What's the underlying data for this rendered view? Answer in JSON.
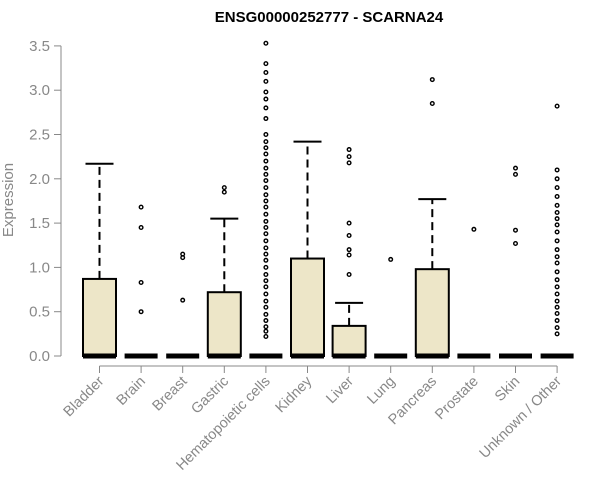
{
  "chart_data": {
    "type": "boxplot",
    "title": "ENSG00000252777 - SCARNA24",
    "xlabel": "",
    "ylabel": "Expression",
    "ylim": [
      0,
      3.5
    ],
    "yticks": [
      "0.0",
      "0.5",
      "1.0",
      "1.5",
      "2.0",
      "2.5",
      "3.0",
      "3.5"
    ],
    "box_color": "#ede6c8",
    "categories": [
      "Bladder",
      "Brain",
      "Breast",
      "Gastric",
      "Hematopoietic cells",
      "Kidney",
      "Liver",
      "Lung",
      "Pancreas",
      "Prostate",
      "Skin",
      "Unknown / Other"
    ],
    "boxes": [
      {
        "q1": 0,
        "median": 0,
        "q3": 0.87,
        "whisker_low": 0,
        "whisker_high": 2.17,
        "outliers": []
      },
      {
        "q1": 0,
        "median": 0,
        "q3": 0,
        "whisker_low": 0,
        "whisker_high": 0,
        "outliers": [
          0.5,
          0.83,
          1.45,
          1.68
        ]
      },
      {
        "q1": 0,
        "median": 0,
        "q3": 0,
        "whisker_low": 0,
        "whisker_high": 0,
        "outliers": [
          0.63,
          1.11,
          1.15
        ]
      },
      {
        "q1": 0,
        "median": 0,
        "q3": 0.72,
        "whisker_low": 0,
        "whisker_high": 1.55,
        "outliers": [
          1.85,
          1.9
        ]
      },
      {
        "q1": 0,
        "median": 0,
        "q3": 0,
        "whisker_low": 0,
        "whisker_high": 0,
        "outliers": [
          0.22,
          0.28,
          0.33,
          0.4,
          0.47,
          0.55,
          0.62,
          0.7,
          0.78,
          0.85,
          0.92,
          1.0,
          1.08,
          1.15,
          1.22,
          1.3,
          1.38,
          1.45,
          1.52,
          1.6,
          1.68,
          1.75,
          1.82,
          1.9,
          1.98,
          2.05,
          2.12,
          2.2,
          2.28,
          2.35,
          2.42,
          2.5,
          2.68,
          2.8,
          2.9,
          2.98,
          3.1,
          3.2,
          3.3,
          3.53
        ]
      },
      {
        "q1": 0,
        "median": 0,
        "q3": 1.1,
        "whisker_low": 0,
        "whisker_high": 2.42,
        "outliers": []
      },
      {
        "q1": 0,
        "median": 0,
        "q3": 0.34,
        "whisker_low": 0,
        "whisker_high": 0.6,
        "outliers": [
          0.92,
          1.14,
          1.2,
          1.36,
          1.5,
          2.18,
          2.25,
          2.33
        ]
      },
      {
        "q1": 0,
        "median": 0,
        "q3": 0,
        "whisker_low": 0,
        "whisker_high": 0,
        "outliers": [
          1.09
        ]
      },
      {
        "q1": 0,
        "median": 0,
        "q3": 0.98,
        "whisker_low": 0,
        "whisker_high": 1.77,
        "outliers": [
          2.85,
          3.12
        ]
      },
      {
        "q1": 0,
        "median": 0,
        "q3": 0,
        "whisker_low": 0,
        "whisker_high": 0,
        "outliers": [
          1.43
        ]
      },
      {
        "q1": 0,
        "median": 0,
        "q3": 0,
        "whisker_low": 0,
        "whisker_high": 0,
        "outliers": [
          1.27,
          1.42,
          2.05,
          2.12
        ]
      },
      {
        "q1": 0,
        "median": 0,
        "q3": 0,
        "whisker_low": 0,
        "whisker_high": 0,
        "outliers": [
          0.25,
          0.32,
          0.4,
          0.48,
          0.55,
          0.62,
          0.7,
          0.78,
          0.86,
          0.95,
          1.05,
          1.12,
          1.2,
          1.3,
          1.4,
          1.48,
          1.55,
          1.62,
          1.7,
          1.8,
          1.9,
          2.0,
          2.1,
          2.82
        ]
      }
    ]
  }
}
